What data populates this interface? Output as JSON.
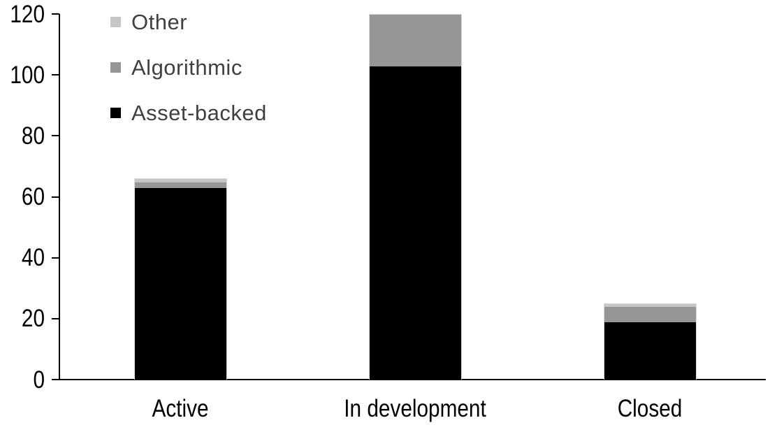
{
  "chart_data": {
    "type": "bar",
    "stacked": true,
    "title": "",
    "xlabel": "",
    "ylabel": "",
    "categories": [
      "Active",
      "In development",
      "Closed"
    ],
    "series": [
      {
        "name": "Asset-backed",
        "color": "#000000",
        "values": [
          63,
          103,
          19
        ]
      },
      {
        "name": "Algorithmic",
        "color": "#969696",
        "values": [
          2,
          17,
          5
        ]
      },
      {
        "name": "Other",
        "color": "#c6c6c6",
        "values": [
          1,
          0,
          1
        ]
      }
    ],
    "totals": [
      66,
      120,
      25
    ],
    "ylim": [
      0,
      120
    ],
    "yticks": [
      0,
      20,
      40,
      60,
      80,
      100,
      120
    ],
    "grid": false,
    "legend_position": "top-left",
    "legend_order": [
      "Other",
      "Algorithmic",
      "Asset-backed"
    ],
    "axis_color": "#000000",
    "legend_text_color": "#404040",
    "bar_outline_color": "#d9d9d9",
    "background_color": "#ffffff"
  }
}
